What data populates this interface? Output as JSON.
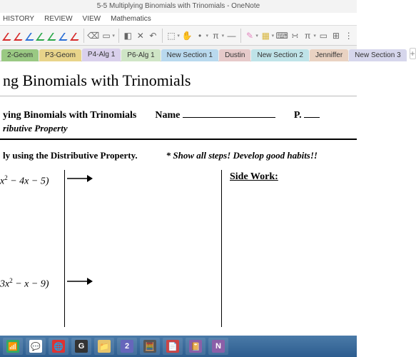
{
  "window_title": "5-5 Multiplying Binomials with Trinomials - OneNote",
  "ribbon": {
    "tabs": [
      "HISTORY",
      "REVIEW",
      "VIEW",
      "Mathematics"
    ]
  },
  "pen_colors": [
    "#d62b2b",
    "#d62b2b",
    "#2b6fd6",
    "#2ba84a",
    "#2ba84a",
    "#2b6fd6",
    "#d62b2b"
  ],
  "toolbar_icons": {
    "eraser": "⌫",
    "select": "▭",
    "dropdown": "▾",
    "insert": "◧",
    "cut": "✕",
    "undo": "↶",
    "space": "⬚",
    "hand": "✋",
    "dot": "•",
    "sigma": "π",
    "link": "—",
    "marker": "✎",
    "highlight": "▦",
    "keyboard": "⌨",
    "math": "∺",
    "pi": "π",
    "minus": "▭",
    "plus": "⊞",
    "dots": "⋮"
  },
  "section_tabs": [
    {
      "label": "2-Geom",
      "bg": "#9ac983",
      "active": false
    },
    {
      "label": "P3-Geom",
      "bg": "#e8d48a",
      "active": false
    },
    {
      "label": "P4-Alg 1",
      "bg": "#d9d0ec",
      "active": true
    },
    {
      "label": "P6-Alg 1",
      "bg": "#cfe5c6",
      "active": false
    },
    {
      "label": "New Section 1",
      "bg": "#b9d9ee",
      "active": false
    },
    {
      "label": "Dustin",
      "bg": "#e6caca",
      "active": false
    },
    {
      "label": "New Section 2",
      "bg": "#bfe3e8",
      "active": false
    },
    {
      "label": "Jenniffer",
      "bg": "#e9d2c2",
      "active": false
    },
    {
      "label": "New Section 3",
      "bg": "#d6d6ec",
      "active": false
    }
  ],
  "page": {
    "title": "ng Binomials with Trinomials",
    "ws_title": "ying Binomials with Trinomials",
    "name_label": "Name",
    "p_label": "P.",
    "subtitle": "ributive Property",
    "instr_left": "ly using the Distributive Property.",
    "instr_right": "* Show all steps!  Develop good habits!!",
    "expr1": "x² − 4x − 5)",
    "expr2": "3x² − x − 9)",
    "sidework": "Side Work:"
  },
  "taskbar_items": [
    {
      "emoji": "📶",
      "bg": "#3a6"
    },
    {
      "emoji": "💬",
      "bg": "#fff"
    },
    {
      "emoji": "🌐",
      "bg": "#d33"
    },
    {
      "emoji": "G",
      "bg": "#333"
    },
    {
      "emoji": "📁",
      "bg": "#e8c56b"
    },
    {
      "emoji": "2",
      "bg": "#66b"
    },
    {
      "emoji": "🧮",
      "bg": "#555"
    },
    {
      "emoji": "📄",
      "bg": "#c44"
    },
    {
      "emoji": "📔",
      "bg": "#8b5fa8"
    },
    {
      "emoji": "N",
      "bg": "#8b5fa8"
    }
  ]
}
